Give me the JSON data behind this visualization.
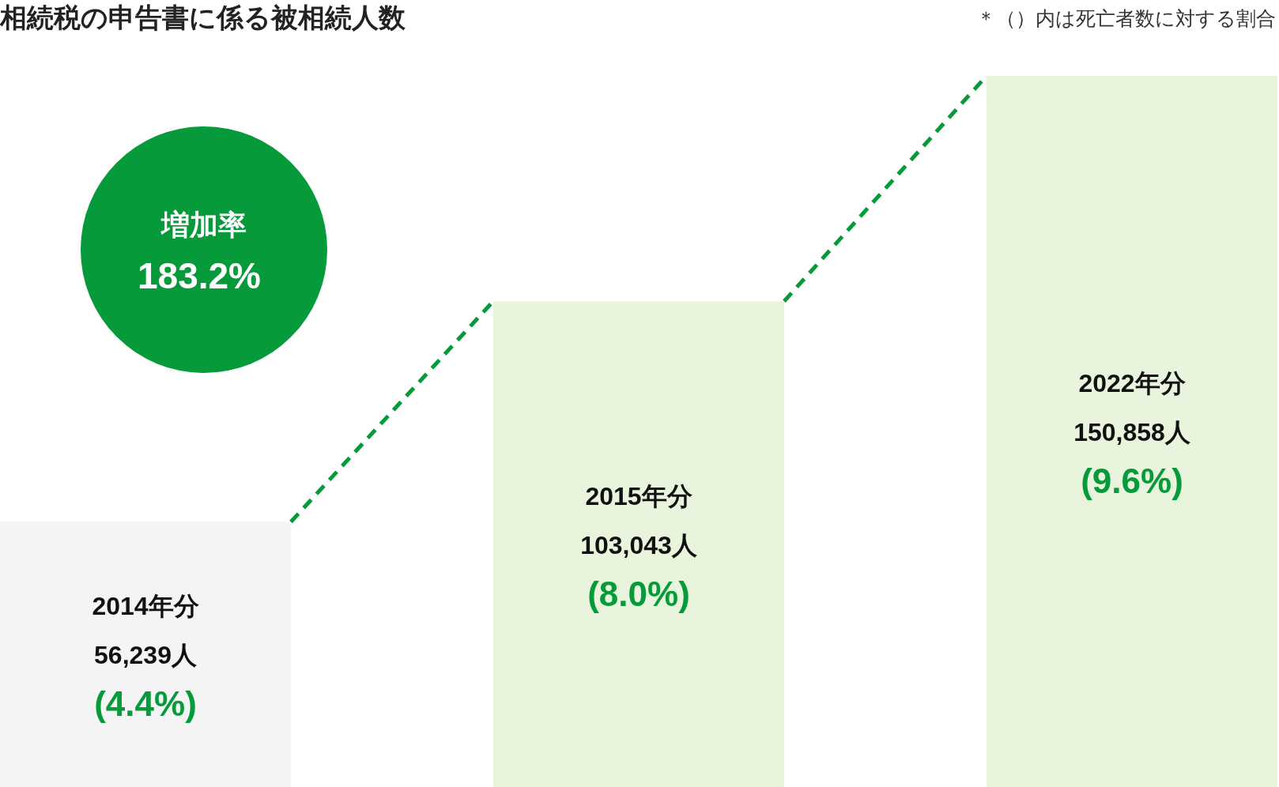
{
  "chart_data": {
    "type": "bar",
    "title": "相続税の申告書に係る被相続人数",
    "categories": [
      "2014年分",
      "2015年分",
      "2022年分"
    ],
    "values": [
      56239,
      103043,
      150858
    ],
    "colors": [
      "#f4f4f4",
      "#e8f5dc",
      "#e8f5dc"
    ],
    "value_labels": [
      "56,239人",
      "103,043人",
      "150,858人"
    ],
    "line_style": "dashed",
    "annotations": [
      "(4.4%)",
      "(8.0%)",
      "(9.6%)",
      "増加率",
      "183.2%",
      "＊（）内は死亡者数に対する割合"
    ]
  }
}
